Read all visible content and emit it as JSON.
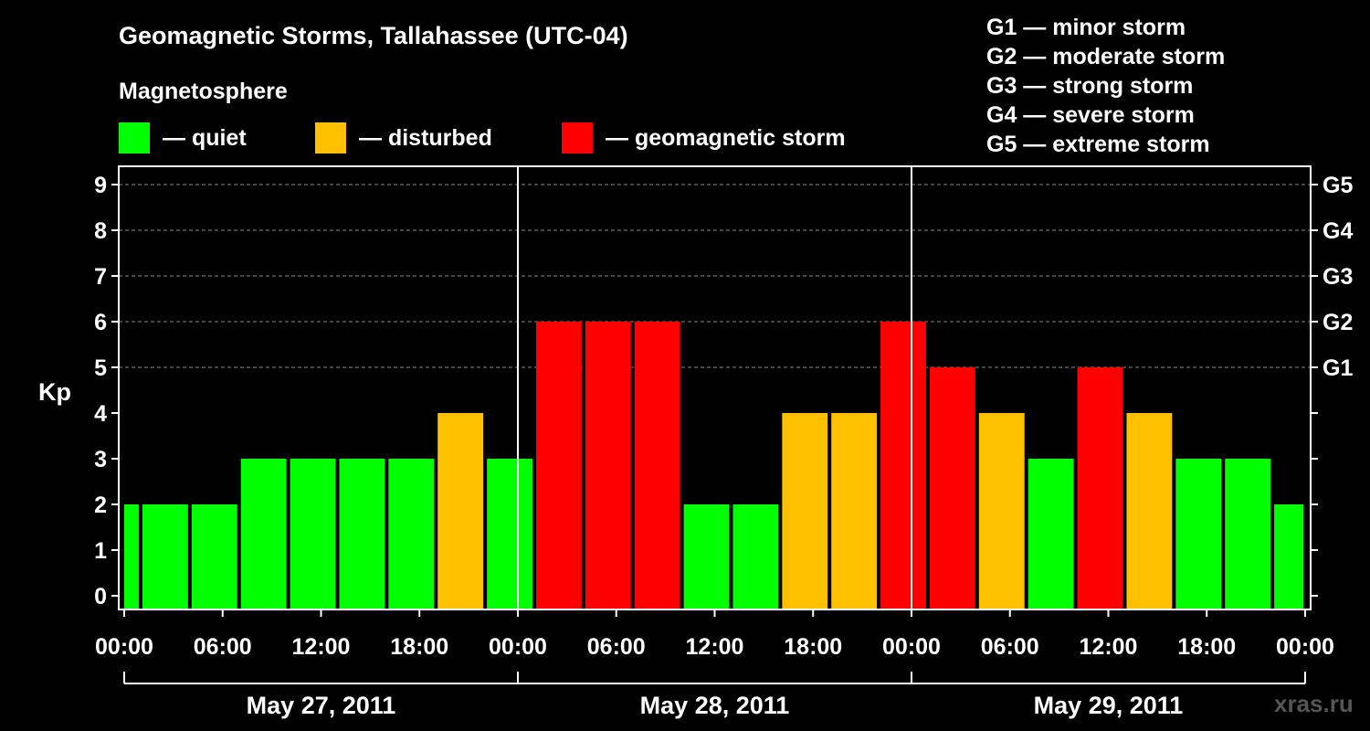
{
  "title": "Geomagnetic Storms, Tallahassee (UTC-04)",
  "magnetosphere": {
    "heading": "Magnetosphere",
    "items": [
      {
        "label": "— quiet",
        "color": "#00ff00"
      },
      {
        "label": "— disturbed",
        "color": "#ffc000"
      },
      {
        "label": "— geomagnetic storm",
        "color": "#ff0000"
      }
    ]
  },
  "storm_scale": [
    "G1 — minor storm",
    "G2 — moderate storm",
    "G3 — strong storm",
    "G4 — severe storm",
    "G5 — extreme storm"
  ],
  "watermark": "xras.ru",
  "chart_data": {
    "type": "bar",
    "ylabel": "Kp",
    "ylim": [
      0,
      9
    ],
    "y_ticks": [
      "0",
      "1",
      "2",
      "3",
      "4",
      "5",
      "6",
      "7",
      "8",
      "9"
    ],
    "right_ticks": [
      {
        "kp": 5,
        "label": "G1"
      },
      {
        "kp": 6,
        "label": "G2"
      },
      {
        "kp": 7,
        "label": "G3"
      },
      {
        "kp": 8,
        "label": "G4"
      },
      {
        "kp": 9,
        "label": "G5"
      }
    ],
    "x_tick_labels": [
      "00:00",
      "06:00",
      "12:00",
      "18:00",
      "00:00",
      "06:00",
      "12:00",
      "18:00",
      "00:00",
      "06:00",
      "12:00",
      "18:00",
      "00:00"
    ],
    "x_tick_hours": [
      0,
      6,
      12,
      18,
      24,
      30,
      36,
      42,
      48,
      54,
      60,
      66,
      72
    ],
    "day_labels": [
      "May 27, 2011",
      "May 28, 2011",
      "May 29, 2011"
    ],
    "grid": "horizontal dashed",
    "bars": [
      {
        "start_hour": 0,
        "end_hour": 1,
        "kp": 2,
        "level": "quiet"
      },
      {
        "start_hour": 1,
        "end_hour": 4,
        "kp": 2,
        "level": "quiet"
      },
      {
        "start_hour": 4,
        "end_hour": 7,
        "kp": 2,
        "level": "quiet"
      },
      {
        "start_hour": 7,
        "end_hour": 10,
        "kp": 3,
        "level": "quiet"
      },
      {
        "start_hour": 10,
        "end_hour": 13,
        "kp": 3,
        "level": "quiet"
      },
      {
        "start_hour": 13,
        "end_hour": 16,
        "kp": 3,
        "level": "quiet"
      },
      {
        "start_hour": 16,
        "end_hour": 19,
        "kp": 3,
        "level": "quiet"
      },
      {
        "start_hour": 19,
        "end_hour": 22,
        "kp": 4,
        "level": "disturbed"
      },
      {
        "start_hour": 22,
        "end_hour": 25,
        "kp": 3,
        "level": "quiet"
      },
      {
        "start_hour": 25,
        "end_hour": 28,
        "kp": 6,
        "level": "storm"
      },
      {
        "start_hour": 28,
        "end_hour": 31,
        "kp": 6,
        "level": "storm"
      },
      {
        "start_hour": 31,
        "end_hour": 34,
        "kp": 6,
        "level": "storm"
      },
      {
        "start_hour": 34,
        "end_hour": 37,
        "kp": 2,
        "level": "quiet"
      },
      {
        "start_hour": 37,
        "end_hour": 40,
        "kp": 2,
        "level": "quiet"
      },
      {
        "start_hour": 40,
        "end_hour": 43,
        "kp": 4,
        "level": "disturbed"
      },
      {
        "start_hour": 43,
        "end_hour": 46,
        "kp": 4,
        "level": "disturbed"
      },
      {
        "start_hour": 46,
        "end_hour": 49,
        "kp": 6,
        "level": "storm"
      },
      {
        "start_hour": 49,
        "end_hour": 52,
        "kp": 5,
        "level": "storm"
      },
      {
        "start_hour": 52,
        "end_hour": 55,
        "kp": 4,
        "level": "disturbed"
      },
      {
        "start_hour": 55,
        "end_hour": 58,
        "kp": 3,
        "level": "quiet"
      },
      {
        "start_hour": 58,
        "end_hour": 61,
        "kp": 5,
        "level": "storm"
      },
      {
        "start_hour": 61,
        "end_hour": 64,
        "kp": 4,
        "level": "disturbed"
      },
      {
        "start_hour": 64,
        "end_hour": 67,
        "kp": 3,
        "level": "quiet"
      },
      {
        "start_hour": 67,
        "end_hour": 70,
        "kp": 3,
        "level": "quiet"
      },
      {
        "start_hour": 70,
        "end_hour": 72,
        "kp": 2,
        "level": "quiet"
      }
    ],
    "colors": {
      "quiet": "#00ff00",
      "disturbed": "#ffc000",
      "storm": "#ff0000"
    }
  }
}
